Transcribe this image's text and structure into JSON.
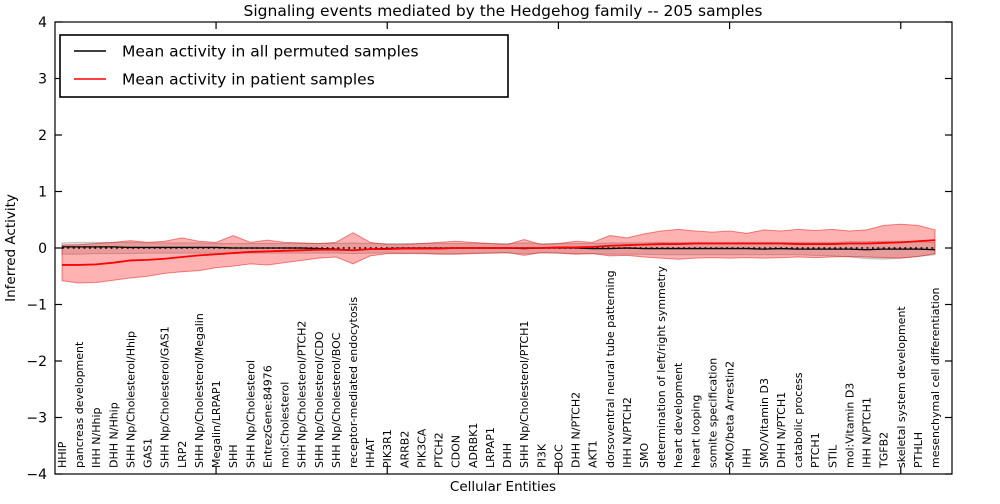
{
  "title": "Signaling events mediated by the Hedgehog family -- 205 samples",
  "axes": {
    "xlabel": "Cellular Entities",
    "ylabel": "Inferred Activity",
    "ytick_values": [
      4,
      3,
      2,
      1,
      0,
      -1,
      -2,
      -3,
      -4
    ],
    "ytick_labels": [
      "4",
      "3",
      "2",
      "1",
      "0",
      "−1",
      "−2",
      "−3",
      "−4"
    ],
    "major_x_tick_indices": [
      9,
      19,
      29,
      39,
      49
    ]
  },
  "legend": {
    "items": [
      {
        "label": "Mean activity in all permuted samples",
        "color": "#000000"
      },
      {
        "label": "Mean activity in patient samples",
        "color": "#ff0000"
      }
    ]
  },
  "colors": {
    "patient_line": "#ff0000",
    "permuted_line": "#000000",
    "patient_band_fill": "rgba(255,0,0,0.30)",
    "patient_band_edge": "rgba(220,0,0,0.45)",
    "permuted_band_fill": "rgba(0,0,0,0.13)",
    "permuted_band_edge": "rgba(0,0,0,0.20)",
    "zero_line": "#000000"
  },
  "chart_data": {
    "type": "line",
    "title": "Signaling events mediated by the Hedgehog family -- 205 samples",
    "xlabel": "Cellular Entities",
    "ylabel": "Inferred Activity",
    "ylim": [
      -4,
      4
    ],
    "grid": false,
    "legend_position": "upper left",
    "zero_reference_line": "dotted",
    "categories": [
      "HHIP",
      "pancreas development",
      "IHH N/Hhip",
      "DHH N/Hhip",
      "SHH Np/Cholesterol/Hhip",
      "GAS1",
      "SHH Np/Cholesterol/GAS1",
      "LRP2",
      "SHH Np/Cholesterol/Megalin",
      "Megalin/LRPAP1",
      "SHH",
      "SHH Np/Cholesterol",
      "EntrezGene:84976",
      "mol:Cholesterol",
      "SHH Np/Cholesterol/PTCH2",
      "SHH Np/Cholesterol/CDO",
      "SHH Np/Cholesterol/BOC",
      "receptor-mediated endocytosis",
      "HHAT",
      "PIK3R1",
      "ARRB2",
      "PIK3CA",
      "PTCH2",
      "CDON",
      "ADRBK1",
      "LRPAP1",
      "DHH",
      "SHH Np/Cholesterol/PTCH1",
      "PI3K",
      "BOC",
      "DHH N/PTCH2",
      "AKT1",
      "dorsoventral neural tube patterning",
      "IHH N/PTCH2",
      "SMO",
      "determination of left/right symmetry",
      "heart development",
      "heart looping",
      "somite specification",
      "SMO/beta Arrestin2",
      "IHH",
      "SMO/Vitamin D3",
      "DHH N/PTCH1",
      "catabolic process",
      "PTCH1",
      "STIL",
      "mol:Vitamin D3",
      "IHH N/PTCH1",
      "TGFB2",
      "skeletal system development",
      "PTHLH",
      "mesenchymal cell differentiation"
    ],
    "series": [
      {
        "name": "Mean activity in all permuted samples",
        "color": "#000000",
        "values": [
          0.02,
          0.02,
          0.02,
          0.02,
          0.01,
          0.01,
          0.01,
          0.01,
          0.01,
          0.01,
          0.0,
          0.0,
          0.0,
          0.0,
          0.0,
          -0.01,
          -0.02,
          -0.04,
          -0.02,
          -0.01,
          0.0,
          0.0,
          0.0,
          0.0,
          0.0,
          0.0,
          0.0,
          -0.01,
          0.0,
          0.0,
          0.0,
          -0.01,
          -0.01,
          0.0,
          -0.01,
          -0.01,
          -0.01,
          -0.01,
          -0.01,
          -0.01,
          -0.01,
          -0.02,
          -0.01,
          -0.02,
          -0.02,
          -0.02,
          -0.02,
          -0.03,
          -0.02,
          -0.02,
          -0.02,
          -0.03
        ],
        "band_upper": [
          0.09,
          0.1,
          0.1,
          0.1,
          0.1,
          0.09,
          0.09,
          0.09,
          0.09,
          0.08,
          0.08,
          0.08,
          0.08,
          0.08,
          0.08,
          0.08,
          0.08,
          0.09,
          0.08,
          0.08,
          0.08,
          0.08,
          0.08,
          0.08,
          0.08,
          0.08,
          0.08,
          0.09,
          0.08,
          0.08,
          0.08,
          0.08,
          0.09,
          0.09,
          0.09,
          0.1,
          0.1,
          0.1,
          0.1,
          0.1,
          0.1,
          0.1,
          0.1,
          0.1,
          0.1,
          0.1,
          0.11,
          0.11,
          0.12,
          0.12,
          0.11,
          0.1
        ],
        "band_lower": [
          -0.11,
          -0.11,
          -0.1,
          -0.1,
          -0.1,
          -0.09,
          -0.09,
          -0.09,
          -0.09,
          -0.09,
          -0.09,
          -0.09,
          -0.09,
          -0.09,
          -0.09,
          -0.09,
          -0.09,
          -0.1,
          -0.09,
          -0.09,
          -0.09,
          -0.09,
          -0.1,
          -0.1,
          -0.09,
          -0.09,
          -0.09,
          -0.1,
          -0.09,
          -0.09,
          -0.1,
          -0.1,
          -0.11,
          -0.11,
          -0.11,
          -0.12,
          -0.12,
          -0.12,
          -0.12,
          -0.12,
          -0.12,
          -0.12,
          -0.12,
          -0.12,
          -0.13,
          -0.14,
          -0.16,
          -0.19,
          -0.2,
          -0.18,
          -0.15,
          -0.12
        ]
      },
      {
        "name": "Mean activity in patient samples",
        "color": "#ff0000",
        "values": [
          -0.3,
          -0.3,
          -0.29,
          -0.26,
          -0.22,
          -0.21,
          -0.19,
          -0.16,
          -0.13,
          -0.11,
          -0.09,
          -0.07,
          -0.06,
          -0.05,
          -0.04,
          -0.03,
          -0.03,
          -0.04,
          -0.02,
          -0.02,
          -0.01,
          -0.01,
          -0.01,
          0.0,
          0.0,
          0.0,
          0.0,
          0.0,
          0.0,
          0.01,
          0.01,
          0.02,
          0.04,
          0.05,
          0.06,
          0.07,
          0.07,
          0.08,
          0.08,
          0.08,
          0.08,
          0.08,
          0.08,
          0.07,
          0.07,
          0.07,
          0.08,
          0.08,
          0.09,
          0.1,
          0.12,
          0.14
        ],
        "band_upper": [
          0.05,
          0.06,
          0.08,
          0.1,
          0.13,
          0.1,
          0.12,
          0.18,
          0.12,
          0.1,
          0.22,
          0.1,
          0.14,
          0.1,
          0.09,
          0.08,
          0.1,
          0.27,
          0.1,
          0.06,
          0.06,
          0.08,
          0.1,
          0.12,
          0.1,
          0.08,
          0.06,
          0.15,
          0.06,
          0.08,
          0.12,
          0.1,
          0.22,
          0.18,
          0.25,
          0.3,
          0.33,
          0.3,
          0.28,
          0.3,
          0.26,
          0.32,
          0.3,
          0.33,
          0.31,
          0.33,
          0.3,
          0.32,
          0.4,
          0.42,
          0.4,
          0.32
        ],
        "band_lower": [
          -0.58,
          -0.62,
          -0.61,
          -0.57,
          -0.53,
          -0.5,
          -0.45,
          -0.42,
          -0.4,
          -0.35,
          -0.32,
          -0.28,
          -0.3,
          -0.26,
          -0.22,
          -0.18,
          -0.16,
          -0.28,
          -0.14,
          -0.1,
          -0.1,
          -0.1,
          -0.11,
          -0.11,
          -0.1,
          -0.09,
          -0.08,
          -0.13,
          -0.08,
          -0.09,
          -0.11,
          -0.1,
          -0.14,
          -0.13,
          -0.16,
          -0.18,
          -0.2,
          -0.18,
          -0.17,
          -0.18,
          -0.17,
          -0.18,
          -0.17,
          -0.16,
          -0.17,
          -0.16,
          -0.15,
          -0.16,
          -0.17,
          -0.18,
          -0.15,
          -0.1
        ]
      }
    ]
  }
}
